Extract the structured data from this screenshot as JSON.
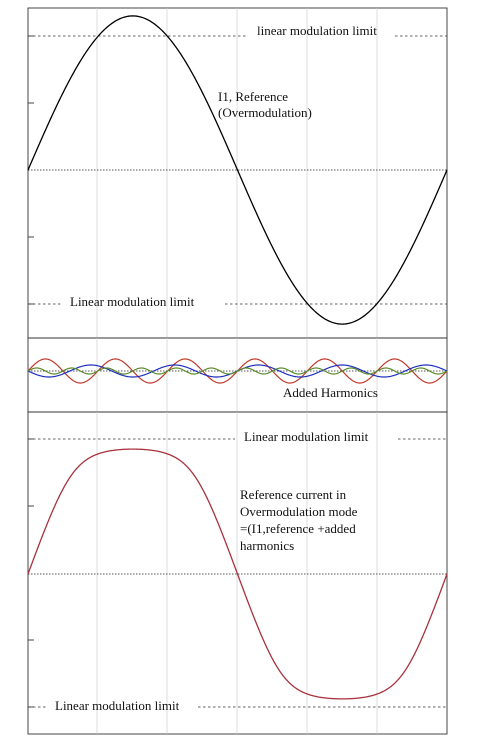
{
  "panels": {
    "reference": {
      "labels": {
        "limit_top": "linear modulation limit",
        "curve_line1": "I1, Reference",
        "curve_line2": "(Overmodulation)",
        "limit_bottom": "Linear modulation limit"
      },
      "amplitude": 1.15,
      "linear_limit": 1.0,
      "color": "#000000"
    },
    "harmonics": {
      "labels": {
        "name": "Added Harmonics"
      },
      "colors": [
        "#c0392b",
        "#1f2fbf",
        "#5a8a2a"
      ]
    },
    "result": {
      "labels": {
        "limit_top": "Linear modulation limit",
        "desc_line1": "Reference current in",
        "desc_line2": "Overmodulation mode",
        "desc_line3": "=(I1,reference +added",
        "desc_line4": "harmonics",
        "limit_bottom": "Linear modulation limit"
      },
      "clip_level": 1.0,
      "color": "#a8323e"
    }
  }
}
